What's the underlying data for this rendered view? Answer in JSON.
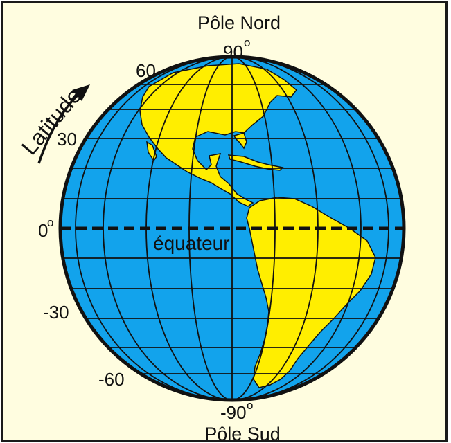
{
  "north_pole_label": "Pôle Nord",
  "south_pole_label": "Pôle Sud",
  "latitude_label": "Latitude",
  "equator_label": "équateur",
  "degree_sign": "o",
  "latitudes": {
    "north_90": "90",
    "north_60": "60",
    "north_30": "30",
    "zero": "0",
    "south_30": "-30",
    "south_60": "-60",
    "south_90": "-90"
  },
  "colors": {
    "ocean": "#12a3ec",
    "land": "#ffee00",
    "grid": "#111111",
    "background": "#fffde0"
  }
}
